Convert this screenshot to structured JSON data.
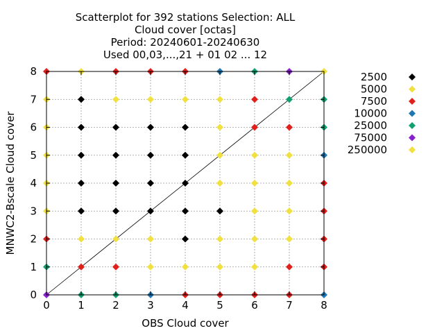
{
  "chart_data": {
    "type": "scatter",
    "title_lines": [
      "Scatterplot for  392 stations Selection: ALL",
      "Cloud cover [octas]",
      "Period: 20240601-20240630",
      "Used 00,03,...,21 + 01 02 ... 12"
    ],
    "xlabel": "OBS Cloud cover",
    "ylabel": "MNWC2-Bscale Cloud cover",
    "xlim": [
      0,
      8
    ],
    "ylim": [
      0,
      8
    ],
    "xticks": [
      "0",
      "1",
      "2",
      "3",
      "4",
      "5",
      "6",
      "7",
      "8"
    ],
    "yticks": [
      "0",
      "1",
      "2",
      "3",
      "4",
      "5",
      "6",
      "7",
      "8"
    ],
    "grid": true,
    "diagonal_line": true,
    "legend_position": "right",
    "categories": [
      {
        "label": "2500",
        "color": "#000000"
      },
      {
        "label": "5000",
        "color": "#f0e040"
      },
      {
        "label": "7500",
        "color": "#e0201c"
      },
      {
        "label": "10000",
        "color": "#1f78b4"
      },
      {
        "label": "25000",
        "color": "#12a070"
      },
      {
        "label": "75000",
        "color": "#8a1fd0"
      },
      {
        "label": "250000",
        "color": "#f0e040"
      }
    ],
    "points": [
      [
        0,
        0,
        5
      ],
      [
        0,
        1,
        4
      ],
      [
        0,
        2,
        2
      ],
      [
        0,
        3,
        6
      ],
      [
        0,
        4,
        6
      ],
      [
        0,
        5,
        6
      ],
      [
        0,
        6,
        6
      ],
      [
        0,
        7,
        6
      ],
      [
        0,
        8,
        2
      ],
      [
        1,
        0,
        4
      ],
      [
        1,
        1,
        2
      ],
      [
        1,
        2,
        6
      ],
      [
        1,
        3,
        0
      ],
      [
        1,
        4,
        0
      ],
      [
        1,
        5,
        0
      ],
      [
        1,
        6,
        0
      ],
      [
        1,
        7,
        0
      ],
      [
        1,
        8,
        6
      ],
      [
        2,
        0,
        4
      ],
      [
        2,
        1,
        2
      ],
      [
        2,
        2,
        6
      ],
      [
        2,
        3,
        0
      ],
      [
        2,
        4,
        0
      ],
      [
        2,
        5,
        0
      ],
      [
        2,
        6,
        0
      ],
      [
        2,
        7,
        6
      ],
      [
        2,
        8,
        2
      ],
      [
        3,
        0,
        3
      ],
      [
        3,
        1,
        6
      ],
      [
        3,
        2,
        6
      ],
      [
        3,
        3,
        0
      ],
      [
        3,
        4,
        0
      ],
      [
        3,
        5,
        0
      ],
      [
        3,
        6,
        0
      ],
      [
        3,
        7,
        6
      ],
      [
        3,
        8,
        2
      ],
      [
        4,
        0,
        2
      ],
      [
        4,
        1,
        6
      ],
      [
        4,
        2,
        0
      ],
      [
        4,
        3,
        0
      ],
      [
        4,
        4,
        0
      ],
      [
        4,
        5,
        0
      ],
      [
        4,
        6,
        0
      ],
      [
        4,
        7,
        6
      ],
      [
        4,
        8,
        2
      ],
      [
        5,
        0,
        2
      ],
      [
        5,
        1,
        6
      ],
      [
        5,
        2,
        6
      ],
      [
        5,
        3,
        0
      ],
      [
        5,
        4,
        6
      ],
      [
        5,
        5,
        6
      ],
      [
        5,
        6,
        6
      ],
      [
        5,
        7,
        6
      ],
      [
        5,
        8,
        3
      ],
      [
        6,
        0,
        2
      ],
      [
        6,
        1,
        6
      ],
      [
        6,
        2,
        6
      ],
      [
        6,
        3,
        6
      ],
      [
        6,
        4,
        6
      ],
      [
        6,
        5,
        6
      ],
      [
        6,
        6,
        2
      ],
      [
        6,
        7,
        2
      ],
      [
        6,
        8,
        4
      ],
      [
        7,
        0,
        2
      ],
      [
        7,
        1,
        2
      ],
      [
        7,
        2,
        6
      ],
      [
        7,
        3,
        6
      ],
      [
        7,
        4,
        6
      ],
      [
        7,
        5,
        6
      ],
      [
        7,
        6,
        2
      ],
      [
        7,
        7,
        4
      ],
      [
        7,
        8,
        5
      ],
      [
        8,
        0,
        3
      ],
      [
        8,
        1,
        2
      ],
      [
        8,
        2,
        2
      ],
      [
        8,
        3,
        2
      ],
      [
        8,
        4,
        2
      ],
      [
        8,
        5,
        3
      ],
      [
        8,
        6,
        4
      ],
      [
        8,
        7,
        4
      ],
      [
        8,
        8,
        6
      ]
    ]
  }
}
